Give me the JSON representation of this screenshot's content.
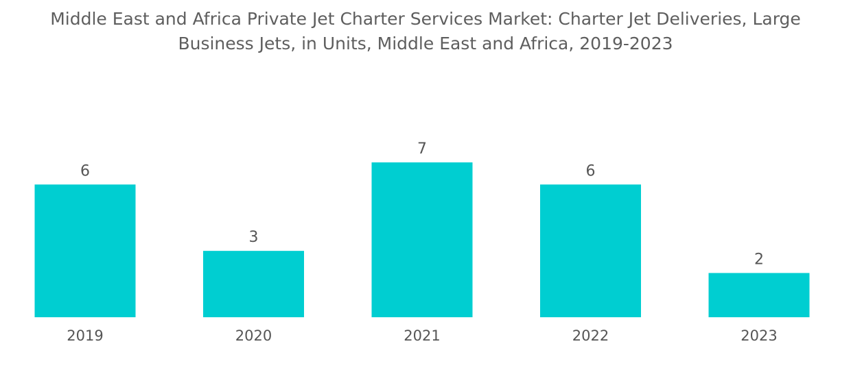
{
  "chart_data": {
    "type": "bar",
    "title": "Middle East and Africa Private Jet Charter Services Market: Charter Jet Deliveries, Large Business Jets, in Units, Middle East and Africa, 2019-2023",
    "categories": [
      "2019",
      "2020",
      "2021",
      "2022",
      "2023"
    ],
    "values": [
      6,
      3,
      7,
      6,
      2
    ],
    "xlabel": "",
    "ylabel": "",
    "ylim": [
      0,
      7
    ],
    "grid": false,
    "legend": "none",
    "bar_color": "#00ced1"
  }
}
